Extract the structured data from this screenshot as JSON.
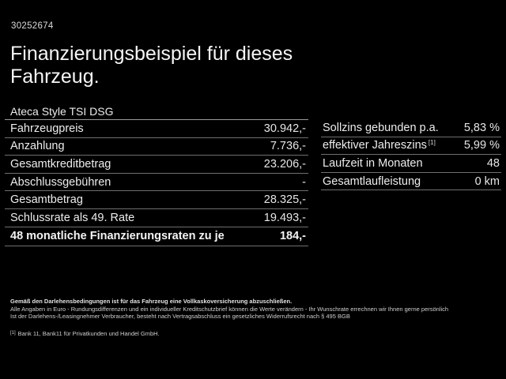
{
  "header": {
    "ref_number": "30252674",
    "title_line1": "Finanzierungsbeispiel für dieses",
    "title_line2": "Fahrzeug.",
    "model": "Ateca Style TSI DSG"
  },
  "left_table": {
    "rows": [
      {
        "label": "Fahrzeugpreis",
        "value": "30.942,-"
      },
      {
        "label": "Anzahlung",
        "value": "7.736,-"
      },
      {
        "label": "Gesamtkreditbetrag",
        "value": "23.206,-"
      },
      {
        "label": "Abschlussgebühren",
        "value": "-"
      },
      {
        "label": "Gesamtbetrag",
        "value": "28.325,-"
      },
      {
        "label": "Schlussrate als 49. Rate",
        "value": "19.493,-"
      },
      {
        "label": "48 monatliche Finanzierungsraten zu je",
        "value": "184,-"
      }
    ]
  },
  "right_table": {
    "rows": [
      {
        "label": "Sollzins gebunden p.a.",
        "value": "5,83 %"
      },
      {
        "label": "effektiver Jahreszins",
        "sup": "[1]",
        "value": "5,99 %"
      },
      {
        "label": "Laufzeit in Monaten",
        "value": "48"
      },
      {
        "label": "Gesamtlaufleistung",
        "value": "0 km"
      }
    ]
  },
  "disclaimer": {
    "line_bold": "Gemäß den Darlehensbedingungen ist für das Fahrzeug eine Vollkaskoversicherung abzuschließen.",
    "line2": "Alle Angaben in Euro - Rundungsdifferenzen und ein individueller Kreditschutzbrief können die Werte verändern - Ihr Wunschrate errechnen wir Ihnen gerne persönlich",
    "line3": "Ist der Darlehens-/Leasingnehmer Verbraucher, besteht nach Vertragsabschluss ein gesetzliches Widerrufsrecht nach § 495 BGB",
    "footnote_marker": "[1]",
    "footnote_text": "Bank 11, Bank11 für Privatkunden und Handel GmbH."
  },
  "colors": {
    "background": "#000000",
    "text": "#efefef",
    "header_divider": "#9a9a9a",
    "row_divider": "#6f6f6f"
  }
}
